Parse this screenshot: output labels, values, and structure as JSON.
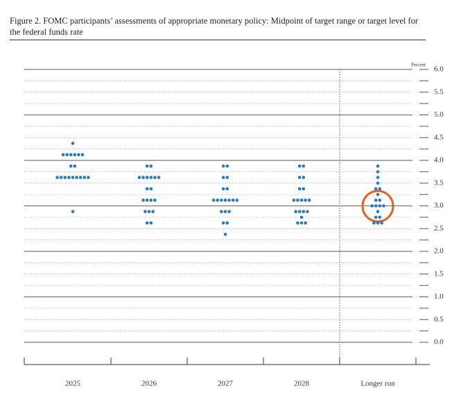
{
  "chart_data": {
    "type": "dot",
    "title": "Figure 2. FOMC participants’ assessments of appropriate monetary policy: Midpoint of target range or target level for the federal funds rate",
    "y_unit_label": "Percent",
    "categories": [
      "2025",
      "2026",
      "2027",
      "2028",
      "Longer run"
    ],
    "values": [
      [
        4.375,
        4.125,
        4.125,
        4.125,
        4.125,
        4.125,
        4.125,
        3.875,
        3.875,
        3.625,
        3.625,
        3.625,
        3.625,
        3.625,
        3.625,
        3.625,
        3.625,
        3.625,
        2.875
      ],
      [
        3.875,
        3.875,
        3.625,
        3.625,
        3.625,
        3.625,
        3.625,
        3.625,
        3.375,
        3.375,
        3.125,
        3.125,
        3.125,
        3.125,
        2.875,
        2.875,
        2.875,
        2.625,
        2.625
      ],
      [
        3.875,
        3.875,
        3.625,
        3.625,
        3.375,
        3.375,
        3.125,
        3.125,
        3.125,
        3.125,
        3.125,
        3.125,
        3.125,
        2.875,
        2.875,
        2.875,
        2.625,
        2.625,
        2.375
      ],
      [
        3.875,
        3.875,
        3.625,
        3.625,
        3.375,
        3.375,
        3.125,
        3.125,
        3.125,
        3.125,
        3.125,
        2.875,
        2.875,
        2.875,
        2.875,
        2.75,
        2.625,
        2.625,
        2.625
      ],
      [
        3.875,
        3.75,
        3.625,
        3.5,
        3.375,
        3.375,
        3.25,
        3.125,
        3.125,
        3,
        3,
        3,
        3,
        2.875,
        2.75,
        2.75,
        2.625,
        2.625,
        2.625
      ]
    ],
    "color": "#2b7bba",
    "ylim": [
      -0.5,
      6
    ],
    "yticks": [
      {
        "value": 0,
        "label": "0.0"
      },
      {
        "value": 0.5,
        "label": "0.5"
      },
      {
        "value": 1,
        "label": "1.0"
      },
      {
        "value": 1.5,
        "label": "1.5"
      },
      {
        "value": 2,
        "label": "2.0"
      },
      {
        "value": 2.5,
        "label": "2.5"
      },
      {
        "value": 3,
        "label": "3.0"
      },
      {
        "value": 3.5,
        "label": "3.5"
      },
      {
        "value": 4,
        "label": "4.0"
      },
      {
        "value": 4.5,
        "label": "4.5"
      },
      {
        "value": 5,
        "label": "5.0"
      },
      {
        "value": 5.5,
        "label": "5.5"
      },
      {
        "value": 6,
        "label": "6.0"
      }
    ],
    "yminorticks": [
      0.25,
      0.75,
      1.25,
      1.75,
      2.25,
      2.75,
      3.25,
      3.75,
      4.25,
      4.75,
      5.25,
      5.75
    ],
    "grid": true
  }
}
